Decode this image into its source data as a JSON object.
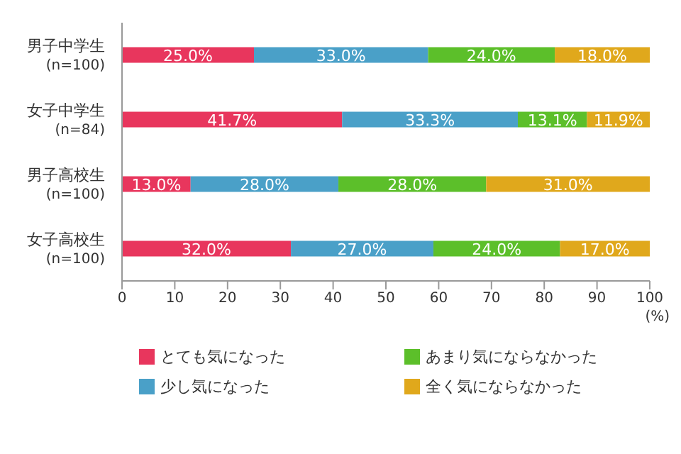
{
  "chart_data": {
    "type": "bar",
    "orientation": "horizontal",
    "stacked": true,
    "categories": [
      "男子中学生\n(n=100)",
      "女子中学生\n(n=84)",
      "男子高校生\n(n=100)",
      "女子高校生\n(n=100)"
    ],
    "series": [
      {
        "name": "とても気になった",
        "color": "#e8365d",
        "values": [
          25.0,
          41.7,
          13.0,
          32.0
        ],
        "value_labels": [
          "25.0%",
          "41.7%",
          "13.0%",
          "32.0%"
        ]
      },
      {
        "name": "少し気になった",
        "color": "#4aa0c8",
        "values": [
          33.0,
          33.3,
          28.0,
          27.0
        ],
        "value_labels": [
          "33.0%",
          "33.3%",
          "28.0%",
          "27.0%"
        ]
      },
      {
        "name": "あまり気にならなかった",
        "color": "#5cbf2a",
        "values": [
          24.0,
          13.1,
          28.0,
          24.0
        ],
        "value_labels": [
          "24.0%",
          "13.1%",
          "28.0%",
          "24.0%"
        ]
      },
      {
        "name": "全く気にならなかった",
        "color": "#e0a81c",
        "values": [
          18.0,
          11.9,
          31.0,
          17.0
        ],
        "value_labels": [
          "18.0%",
          "11.9%",
          "31.0%",
          "17.0%"
        ]
      }
    ],
    "xlim": [
      0,
      100
    ],
    "xticks": [
      0,
      10,
      20,
      30,
      40,
      50,
      60,
      70,
      80,
      90,
      100
    ],
    "xlabel": "(%)",
    "legend": "bottom"
  }
}
